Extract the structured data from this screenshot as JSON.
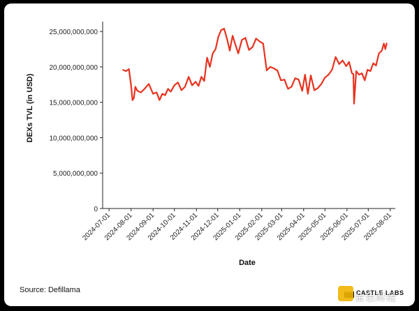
{
  "chart_data": {
    "type": "line",
    "xlabel": "Date",
    "ylabel": "DEXs TVL (in USD)",
    "x_ticks": [
      "2024-07-01",
      "2024-08-01",
      "2024-09-01",
      "2024-10-01",
      "2024-11-01",
      "2024-12-01",
      "2025-01-01",
      "2025-02-01",
      "2025-03-01",
      "2025-04-01",
      "2025-05-01",
      "2025-06-01",
      "2025-07-01",
      "2025-08-01"
    ],
    "y_ticks": [
      "0",
      "5,000,000,000",
      "10,000,000,000",
      "15,000,000,000",
      "20,000,000,000",
      "25,000,000,000"
    ],
    "ylim": [
      0,
      26000000000
    ],
    "xlim": [
      "2024-06-22",
      "2025-08-08"
    ],
    "grid": false,
    "series": [
      {
        "color": "#e8321e",
        "x": [
          "2024-07-20",
          "2024-07-25",
          "2024-07-29",
          "2024-08-01",
          "2024-08-03",
          "2024-08-05",
          "2024-08-07",
          "2024-08-10",
          "2024-08-15",
          "2024-08-20",
          "2024-08-26",
          "2024-09-01",
          "2024-09-06",
          "2024-09-10",
          "2024-09-14",
          "2024-09-18",
          "2024-09-22",
          "2024-09-26",
          "2024-10-01",
          "2024-10-06",
          "2024-10-11",
          "2024-10-16",
          "2024-10-21",
          "2024-10-26",
          "2024-10-31",
          "2024-11-04",
          "2024-11-08",
          "2024-11-12",
          "2024-11-16",
          "2024-11-20",
          "2024-11-24",
          "2024-11-28",
          "2024-12-02",
          "2024-12-06",
          "2024-12-10",
          "2024-12-14",
          "2024-12-18",
          "2024-12-22",
          "2024-12-26",
          "2024-12-30",
          "2025-01-04",
          "2025-01-09",
          "2025-01-14",
          "2025-01-19",
          "2025-01-24",
          "2025-01-29",
          "2025-02-03",
          "2025-02-08",
          "2025-02-13",
          "2025-02-18",
          "2025-02-23",
          "2025-02-28",
          "2025-03-05",
          "2025-03-10",
          "2025-03-15",
          "2025-03-20",
          "2025-03-25",
          "2025-03-30",
          "2025-04-03",
          "2025-04-07",
          "2025-04-11",
          "2025-04-16",
          "2025-04-21",
          "2025-04-26",
          "2025-05-01",
          "2025-05-06",
          "2025-05-11",
          "2025-05-16",
          "2025-05-21",
          "2025-05-26",
          "2025-05-31",
          "2025-06-04",
          "2025-06-08",
          "2025-06-10",
          "2025-06-11",
          "2025-06-14",
          "2025-06-18",
          "2025-06-22",
          "2025-06-26",
          "2025-06-30",
          "2025-07-04",
          "2025-07-08",
          "2025-07-12",
          "2025-07-16",
          "2025-07-20",
          "2025-07-23",
          "2025-07-25",
          "2025-07-27"
        ],
        "values": [
          19600000000,
          19400000000,
          19700000000,
          17400000000,
          15300000000,
          15600000000,
          17200000000,
          16600000000,
          16400000000,
          16900000000,
          17600000000,
          16200000000,
          16400000000,
          15300000000,
          16200000000,
          16000000000,
          16900000000,
          16500000000,
          17400000000,
          17800000000,
          16700000000,
          17200000000,
          18600000000,
          17400000000,
          17900000000,
          17300000000,
          18600000000,
          18000000000,
          21300000000,
          20000000000,
          21900000000,
          22500000000,
          24300000000,
          25200000000,
          25400000000,
          24000000000,
          22300000000,
          24400000000,
          23100000000,
          21900000000,
          23800000000,
          24100000000,
          22400000000,
          22800000000,
          24000000000,
          23600000000,
          23300000000,
          19500000000,
          20000000000,
          19800000000,
          19500000000,
          18100000000,
          18200000000,
          16900000000,
          17200000000,
          18400000000,
          18200000000,
          16600000000,
          18900000000,
          16200000000,
          18800000000,
          16700000000,
          17000000000,
          17600000000,
          18500000000,
          18900000000,
          19600000000,
          21400000000,
          20400000000,
          20900000000,
          20100000000,
          20700000000,
          19100000000,
          19000000000,
          14800000000,
          19400000000,
          18900000000,
          19100000000,
          18100000000,
          19600000000,
          19400000000,
          20500000000,
          20200000000,
          21900000000,
          22300000000,
          23300000000,
          22500000000,
          23400000000
        ]
      }
    ]
  },
  "footer": {
    "source": "Source: Defillama",
    "brand": "CASTLE LABS",
    "watermark": "金色财经"
  }
}
